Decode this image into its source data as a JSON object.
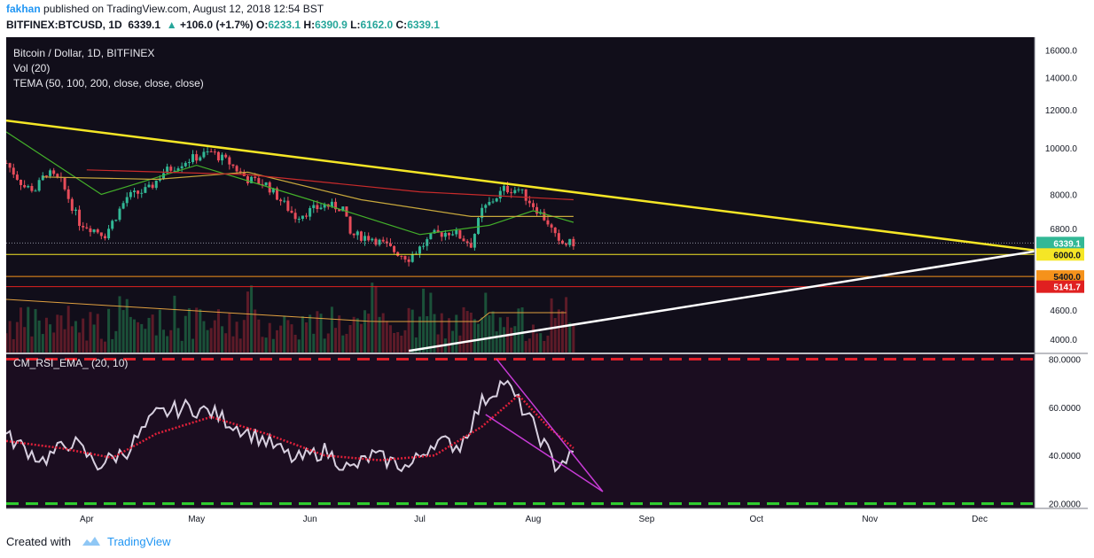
{
  "header": {
    "username": "fakhan",
    "published_text": "published on TradingView.com, August 12, 2018 12:54 BST",
    "symbol": "BITFINEX:BTCUSD, 1D",
    "price": "6339.1",
    "change_arrow": "▲",
    "change": "+106.0 (+1.7%)",
    "o_label": "O:",
    "o_value": "6233.1",
    "h_label": "H:",
    "h_value": "6390.9",
    "l_label": "L:",
    "l_value": "6162.0",
    "c_label": "C:",
    "c_value": "6339.1"
  },
  "footer": {
    "created_with": "Created with",
    "brand": "TradingView"
  },
  "colors": {
    "background": "#110e1a",
    "rsi_background": "#1b0d20",
    "bull": "#32b896",
    "bear": "#e84c5a",
    "trendline_yellow": "#f5e626",
    "trendline_white": "#ffffff",
    "tema_fast": "#43b02a",
    "tema_mid": "#c8a83c",
    "tema_slow": "#c92b2b",
    "rsi_line": "#d8d0e0",
    "rsi_ema": "#e0203a",
    "wedge": "#c83bd6",
    "overbought_dash": "#e0202a",
    "oversold_dash": "#2fd12f"
  },
  "chart_data": [
    {
      "type": "candlestick",
      "title": "Bitcoin / Dollar, 1D, BITFINEX",
      "indicators": [
        "Vol (20)",
        "TEMA (50, 100, 200, close, close, close)"
      ],
      "x_axis_labels": [
        "Apr",
        "May",
        "Jun",
        "Jul",
        "Aug",
        "Sep",
        "Oct",
        "Nov",
        "Dec"
      ],
      "y_axis_labels": [
        "16000.0",
        "14000.0",
        "12000.0",
        "10000.0",
        "8000.0",
        "6800.0",
        "4600.0",
        "4000.0"
      ],
      "y_scale": "log",
      "ylim": [
        3750,
        17000
      ],
      "xlim": [
        "2018-03-10",
        "2018-12-16"
      ],
      "last_price": "6339.1",
      "horizontal_levels": [
        {
          "label": "6000.0",
          "value": 6000,
          "color": "#f5e626"
        },
        {
          "label": "5400.0",
          "value": 5400,
          "color": "#f5921b"
        },
        {
          "label": "5141.7",
          "value": 5141.7,
          "color": "#e02020"
        }
      ],
      "trendlines": [
        {
          "name": "descending resistance",
          "from": [
            "2018-03-10",
            11400
          ],
          "to": [
            "2018-12-16",
            6120
          ],
          "color": "#f5e626"
        },
        {
          "name": "rising support",
          "from": [
            "2018-06-28",
            3780
          ],
          "to": [
            "2018-12-16",
            6090
          ],
          "color": "#ffffff"
        }
      ],
      "close_path": [
        [
          "2018-03-10",
          9300
        ],
        [
          "2018-03-15",
          8300
        ],
        [
          "2018-03-18",
          8200
        ],
        [
          "2018-03-21",
          8900
        ],
        [
          "2018-03-25",
          8500
        ],
        [
          "2018-03-30",
          7000
        ],
        [
          "2018-04-06",
          6600
        ],
        [
          "2018-04-12",
          7900
        ],
        [
          "2018-04-18",
          8200
        ],
        [
          "2018-04-22",
          8900
        ],
        [
          "2018-04-28",
          9400
        ],
        [
          "2018-05-05",
          9800
        ],
        [
          "2018-05-10",
          9300
        ],
        [
          "2018-05-15",
          8600
        ],
        [
          "2018-05-20",
          8400
        ],
        [
          "2018-05-28",
          7200
        ],
        [
          "2018-06-05",
          7600
        ],
        [
          "2018-06-10",
          7500
        ],
        [
          "2018-06-12",
          6600
        ],
        [
          "2018-06-18",
          6500
        ],
        [
          "2018-06-24",
          6100
        ],
        [
          "2018-06-28",
          5900
        ],
        [
          "2018-07-05",
          6600
        ],
        [
          "2018-07-10",
          6700
        ],
        [
          "2018-07-15",
          6300
        ],
        [
          "2018-07-18",
          7400
        ],
        [
          "2018-07-24",
          8200
        ],
        [
          "2018-07-28",
          8200
        ],
        [
          "2018-08-01",
          7600
        ],
        [
          "2018-08-05",
          7000
        ],
        [
          "2018-08-08",
          6300
        ],
        [
          "2018-08-12",
          6339
        ]
      ],
      "moving_averages": [
        {
          "name": "TEMA 50",
          "color": "#43b02a",
          "points": [
            [
              "2018-03-10",
              10800
            ],
            [
              "2018-04-05",
              8000
            ],
            [
              "2018-05-01",
              9200
            ],
            [
              "2018-06-01",
              7800
            ],
            [
              "2018-07-01",
              6600
            ],
            [
              "2018-07-20",
              6900
            ],
            [
              "2018-08-01",
              7400
            ],
            [
              "2018-08-12",
              7000
            ]
          ]
        },
        {
          "name": "TEMA 100",
          "color": "#c8a83c",
          "points": [
            [
              "2018-03-20",
              8700
            ],
            [
              "2018-04-20",
              8600
            ],
            [
              "2018-05-15",
              8900
            ],
            [
              "2018-06-15",
              7800
            ],
            [
              "2018-07-15",
              7200
            ],
            [
              "2018-08-12",
              7200
            ]
          ]
        },
        {
          "name": "TEMA 200",
          "color": "#c92b2b",
          "points": [
            [
              "2018-04-01",
              9000
            ],
            [
              "2018-05-15",
              8800
            ],
            [
              "2018-07-01",
              8100
            ],
            [
              "2018-08-12",
              7800
            ]
          ]
        }
      ]
    },
    {
      "type": "line",
      "title": "CM_RSI_EMA_ (20, 10)",
      "y_axis_labels": [
        "80.0000",
        "60.0000",
        "40.0000",
        "20.0000"
      ],
      "ylim": [
        18,
        82
      ],
      "levels": [
        {
          "value": 80,
          "color": "#e0202a",
          "style": "dashed"
        },
        {
          "value": 20,
          "color": "#2fd12f",
          "style": "dashed"
        }
      ],
      "series": [
        {
          "color": "#d8d0e0",
          "values_by_date": [
            [
              "2018-03-10",
              48
            ],
            [
              "2018-03-20",
              38
            ],
            [
              "2018-03-28",
              46
            ],
            [
              "2018-04-04",
              36
            ],
            [
              "2018-04-12",
              42
            ],
            [
              "2018-04-20",
              57
            ],
            [
              "2018-04-28",
              60
            ],
            [
              "2018-05-05",
              58
            ],
            [
              "2018-05-12",
              52
            ],
            [
              "2018-05-20",
              46
            ],
            [
              "2018-05-28",
              38
            ],
            [
              "2018-06-05",
              42
            ],
            [
              "2018-06-12",
              34
            ],
            [
              "2018-06-18",
              40
            ],
            [
              "2018-06-28",
              35
            ],
            [
              "2018-07-05",
              46
            ],
            [
              "2018-07-12",
              44
            ],
            [
              "2018-07-18",
              62
            ],
            [
              "2018-07-24",
              71
            ],
            [
              "2018-07-28",
              62
            ],
            [
              "2018-08-02",
              50
            ],
            [
              "2018-08-07",
              36
            ],
            [
              "2018-08-12",
              40
            ]
          ]
        },
        {
          "color": "#e0203a",
          "style": "dotted",
          "values_by_date": [
            [
              "2018-03-10",
              46
            ],
            [
              "2018-03-25",
              43
            ],
            [
              "2018-04-08",
              39
            ],
            [
              "2018-04-20",
              49
            ],
            [
              "2018-05-05",
              56
            ],
            [
              "2018-05-20",
              49
            ],
            [
              "2018-06-05",
              40
            ],
            [
              "2018-06-20",
              38
            ],
            [
              "2018-07-05",
              40
            ],
            [
              "2018-07-18",
              52
            ],
            [
              "2018-07-28",
              65
            ],
            [
              "2018-08-05",
              52
            ],
            [
              "2018-08-12",
              43
            ]
          ]
        }
      ],
      "trendlines": [
        {
          "from": [
            "2018-07-22",
            80
          ],
          "to": [
            "2018-08-20",
            25
          ],
          "color": "#c83bd6"
        },
        {
          "from": [
            "2018-07-19",
            57
          ],
          "to": [
            "2018-08-20",
            25
          ],
          "color": "#c83bd6"
        }
      ]
    }
  ]
}
